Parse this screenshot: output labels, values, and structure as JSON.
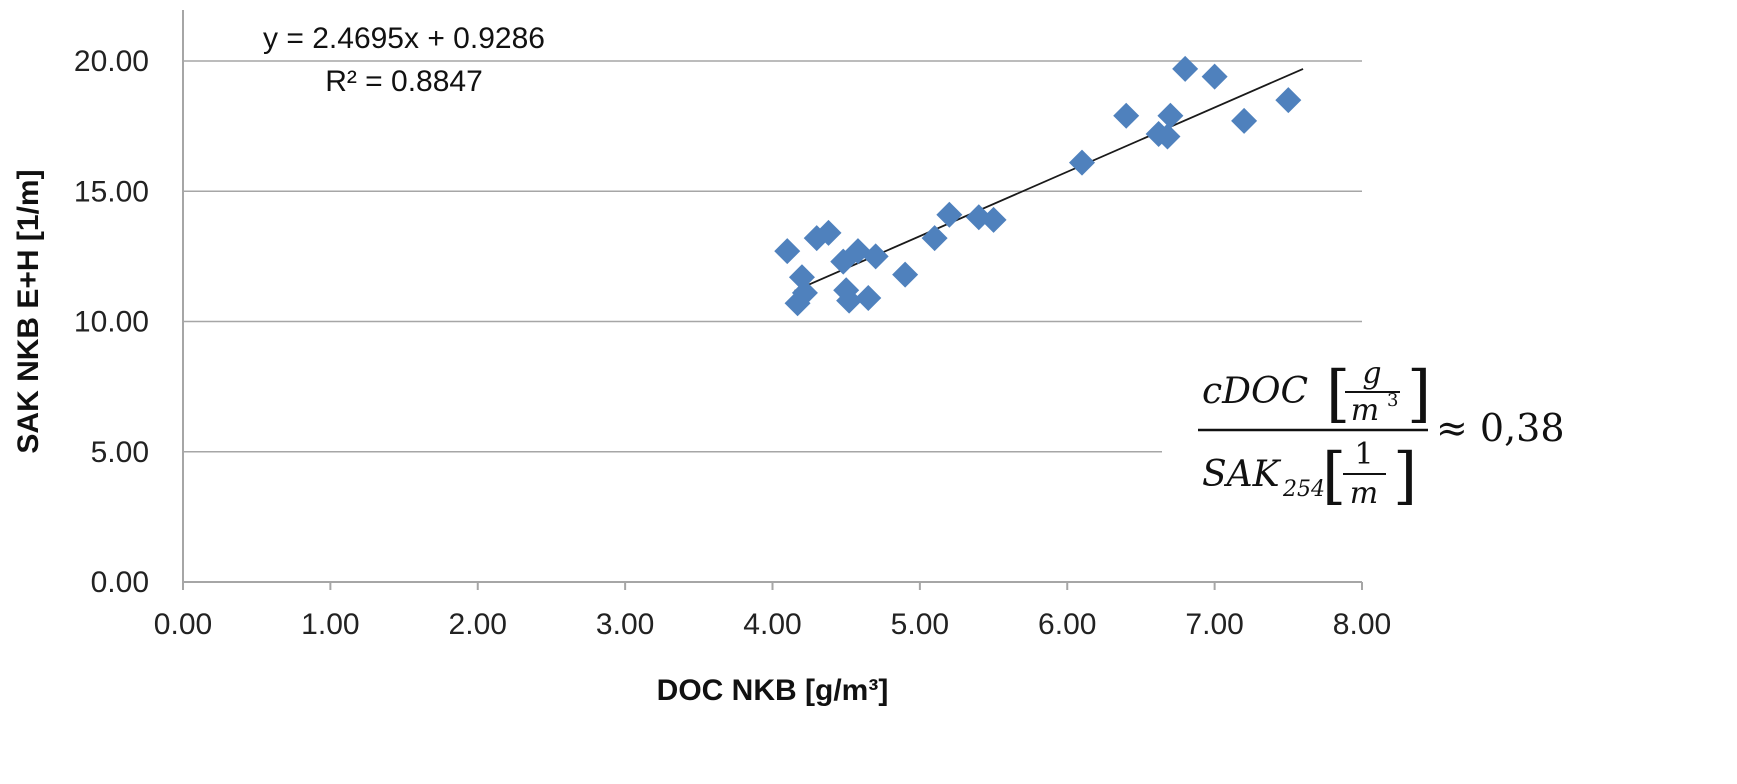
{
  "chart_data": {
    "type": "scatter",
    "xlabel": "DOC NKB [g/m³]",
    "ylabel": "SAK NKB E+H [1/m]",
    "xlim": [
      0,
      8
    ],
    "ylim": [
      0,
      20
    ],
    "x_ticks": [
      "0.00",
      "1.00",
      "2.00",
      "3.00",
      "4.00",
      "5.00",
      "6.00",
      "7.00",
      "8.00"
    ],
    "y_ticks": [
      "0.00",
      "5.00",
      "10.00",
      "15.00",
      "20.00"
    ],
    "grid": "horizontal",
    "marker": "diamond",
    "marker_color": "#4f81bd",
    "line_color": "#1a1a1a",
    "points": [
      {
        "x": 4.1,
        "y": 12.7
      },
      {
        "x": 4.2,
        "y": 11.7
      },
      {
        "x": 4.17,
        "y": 10.7
      },
      {
        "x": 4.22,
        "y": 11.1
      },
      {
        "x": 4.3,
        "y": 13.2
      },
      {
        "x": 4.38,
        "y": 13.4
      },
      {
        "x": 4.48,
        "y": 12.3
      },
      {
        "x": 4.5,
        "y": 11.2
      },
      {
        "x": 4.52,
        "y": 10.8
      },
      {
        "x": 4.58,
        "y": 12.7
      },
      {
        "x": 4.65,
        "y": 10.9
      },
      {
        "x": 4.7,
        "y": 12.5
      },
      {
        "x": 4.9,
        "y": 11.8
      },
      {
        "x": 5.1,
        "y": 13.2
      },
      {
        "x": 5.2,
        "y": 14.1
      },
      {
        "x": 5.4,
        "y": 14.0
      },
      {
        "x": 5.5,
        "y": 13.9
      },
      {
        "x": 6.1,
        "y": 16.1
      },
      {
        "x": 6.4,
        "y": 17.9
      },
      {
        "x": 6.62,
        "y": 17.2
      },
      {
        "x": 6.7,
        "y": 17.9
      },
      {
        "x": 6.68,
        "y": 17.1
      },
      {
        "x": 6.8,
        "y": 19.7
      },
      {
        "x": 7.0,
        "y": 19.4
      },
      {
        "x": 7.2,
        "y": 17.7
      },
      {
        "x": 7.5,
        "y": 18.5
      }
    ],
    "trendline": {
      "slope": 2.4695,
      "intercept": 0.9286,
      "x_range": [
        4.15,
        7.6
      ],
      "equation": "y = 2.4695x + 0.9286",
      "r_squared": "R² = 0.8847"
    },
    "annotation": {
      "numerator": "cDOC",
      "numerator_unit_top": "g",
      "numerator_unit_bottom": "m",
      "numerator_unit_exp": "3",
      "denominator": "SAK",
      "denominator_sub": "254",
      "denominator_unit_top": "1",
      "denominator_unit_bottom": "m",
      "relation": "≈ 0,38"
    }
  }
}
